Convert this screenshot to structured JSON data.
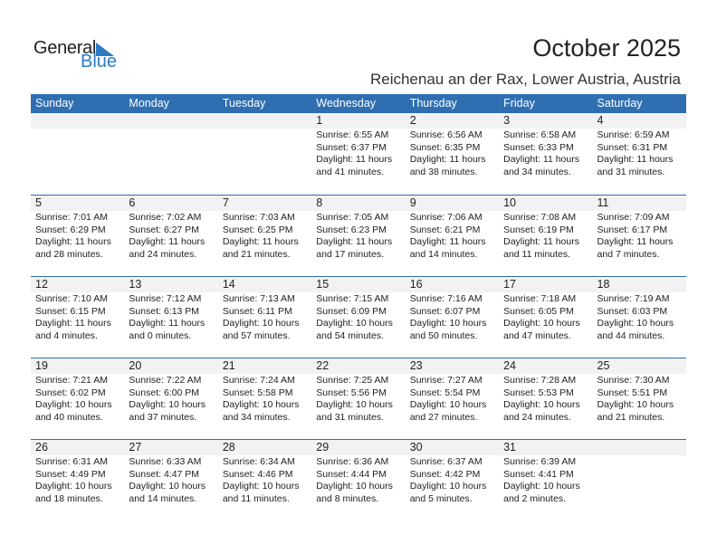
{
  "logo": {
    "word1": "General",
    "word2": "Blue"
  },
  "title": "October 2025",
  "subtitle": "Reichenau an der Rax, Lower Austria, Austria",
  "days": [
    "Sunday",
    "Monday",
    "Tuesday",
    "Wednesday",
    "Thursday",
    "Friday",
    "Saturday"
  ],
  "colors": {
    "header": "#2f6fb1",
    "day_row": "#f2f2f2",
    "logo_blue": "#2a7bc4"
  },
  "weeks": [
    [
      null,
      null,
      null,
      {
        "d": "1",
        "sr": "Sunrise: 6:55 AM",
        "ss": "Sunset: 6:37 PM",
        "dl": "Daylight: 11 hours",
        "m": "and 41 minutes."
      },
      {
        "d": "2",
        "sr": "Sunrise: 6:56 AM",
        "ss": "Sunset: 6:35 PM",
        "dl": "Daylight: 11 hours",
        "m": "and 38 minutes."
      },
      {
        "d": "3",
        "sr": "Sunrise: 6:58 AM",
        "ss": "Sunset: 6:33 PM",
        "dl": "Daylight: 11 hours",
        "m": "and 34 minutes."
      },
      {
        "d": "4",
        "sr": "Sunrise: 6:59 AM",
        "ss": "Sunset: 6:31 PM",
        "dl": "Daylight: 11 hours",
        "m": "and 31 minutes."
      }
    ],
    [
      {
        "d": "5",
        "sr": "Sunrise: 7:01 AM",
        "ss": "Sunset: 6:29 PM",
        "dl": "Daylight: 11 hours",
        "m": "and 28 minutes."
      },
      {
        "d": "6",
        "sr": "Sunrise: 7:02 AM",
        "ss": "Sunset: 6:27 PM",
        "dl": "Daylight: 11 hours",
        "m": "and 24 minutes."
      },
      {
        "d": "7",
        "sr": "Sunrise: 7:03 AM",
        "ss": "Sunset: 6:25 PM",
        "dl": "Daylight: 11 hours",
        "m": "and 21 minutes."
      },
      {
        "d": "8",
        "sr": "Sunrise: 7:05 AM",
        "ss": "Sunset: 6:23 PM",
        "dl": "Daylight: 11 hours",
        "m": "and 17 minutes."
      },
      {
        "d": "9",
        "sr": "Sunrise: 7:06 AM",
        "ss": "Sunset: 6:21 PM",
        "dl": "Daylight: 11 hours",
        "m": "and 14 minutes."
      },
      {
        "d": "10",
        "sr": "Sunrise: 7:08 AM",
        "ss": "Sunset: 6:19 PM",
        "dl": "Daylight: 11 hours",
        "m": "and 11 minutes."
      },
      {
        "d": "11",
        "sr": "Sunrise: 7:09 AM",
        "ss": "Sunset: 6:17 PM",
        "dl": "Daylight: 11 hours",
        "m": "and 7 minutes."
      }
    ],
    [
      {
        "d": "12",
        "sr": "Sunrise: 7:10 AM",
        "ss": "Sunset: 6:15 PM",
        "dl": "Daylight: 11 hours",
        "m": "and 4 minutes."
      },
      {
        "d": "13",
        "sr": "Sunrise: 7:12 AM",
        "ss": "Sunset: 6:13 PM",
        "dl": "Daylight: 11 hours",
        "m": "and 0 minutes."
      },
      {
        "d": "14",
        "sr": "Sunrise: 7:13 AM",
        "ss": "Sunset: 6:11 PM",
        "dl": "Daylight: 10 hours",
        "m": "and 57 minutes."
      },
      {
        "d": "15",
        "sr": "Sunrise: 7:15 AM",
        "ss": "Sunset: 6:09 PM",
        "dl": "Daylight: 10 hours",
        "m": "and 54 minutes."
      },
      {
        "d": "16",
        "sr": "Sunrise: 7:16 AM",
        "ss": "Sunset: 6:07 PM",
        "dl": "Daylight: 10 hours",
        "m": "and 50 minutes."
      },
      {
        "d": "17",
        "sr": "Sunrise: 7:18 AM",
        "ss": "Sunset: 6:05 PM",
        "dl": "Daylight: 10 hours",
        "m": "and 47 minutes."
      },
      {
        "d": "18",
        "sr": "Sunrise: 7:19 AM",
        "ss": "Sunset: 6:03 PM",
        "dl": "Daylight: 10 hours",
        "m": "and 44 minutes."
      }
    ],
    [
      {
        "d": "19",
        "sr": "Sunrise: 7:21 AM",
        "ss": "Sunset: 6:02 PM",
        "dl": "Daylight: 10 hours",
        "m": "and 40 minutes."
      },
      {
        "d": "20",
        "sr": "Sunrise: 7:22 AM",
        "ss": "Sunset: 6:00 PM",
        "dl": "Daylight: 10 hours",
        "m": "and 37 minutes."
      },
      {
        "d": "21",
        "sr": "Sunrise: 7:24 AM",
        "ss": "Sunset: 5:58 PM",
        "dl": "Daylight: 10 hours",
        "m": "and 34 minutes."
      },
      {
        "d": "22",
        "sr": "Sunrise: 7:25 AM",
        "ss": "Sunset: 5:56 PM",
        "dl": "Daylight: 10 hours",
        "m": "and 31 minutes."
      },
      {
        "d": "23",
        "sr": "Sunrise: 7:27 AM",
        "ss": "Sunset: 5:54 PM",
        "dl": "Daylight: 10 hours",
        "m": "and 27 minutes."
      },
      {
        "d": "24",
        "sr": "Sunrise: 7:28 AM",
        "ss": "Sunset: 5:53 PM",
        "dl": "Daylight: 10 hours",
        "m": "and 24 minutes."
      },
      {
        "d": "25",
        "sr": "Sunrise: 7:30 AM",
        "ss": "Sunset: 5:51 PM",
        "dl": "Daylight: 10 hours",
        "m": "and 21 minutes."
      }
    ],
    [
      {
        "d": "26",
        "sr": "Sunrise: 6:31 AM",
        "ss": "Sunset: 4:49 PM",
        "dl": "Daylight: 10 hours",
        "m": "and 18 minutes."
      },
      {
        "d": "27",
        "sr": "Sunrise: 6:33 AM",
        "ss": "Sunset: 4:47 PM",
        "dl": "Daylight: 10 hours",
        "m": "and 14 minutes."
      },
      {
        "d": "28",
        "sr": "Sunrise: 6:34 AM",
        "ss": "Sunset: 4:46 PM",
        "dl": "Daylight: 10 hours",
        "m": "and 11 minutes."
      },
      {
        "d": "29",
        "sr": "Sunrise: 6:36 AM",
        "ss": "Sunset: 4:44 PM",
        "dl": "Daylight: 10 hours",
        "m": "and 8 minutes."
      },
      {
        "d": "30",
        "sr": "Sunrise: 6:37 AM",
        "ss": "Sunset: 4:42 PM",
        "dl": "Daylight: 10 hours",
        "m": "and 5 minutes."
      },
      {
        "d": "31",
        "sr": "Sunrise: 6:39 AM",
        "ss": "Sunset: 4:41 PM",
        "dl": "Daylight: 10 hours",
        "m": "and 2 minutes."
      },
      null
    ]
  ]
}
